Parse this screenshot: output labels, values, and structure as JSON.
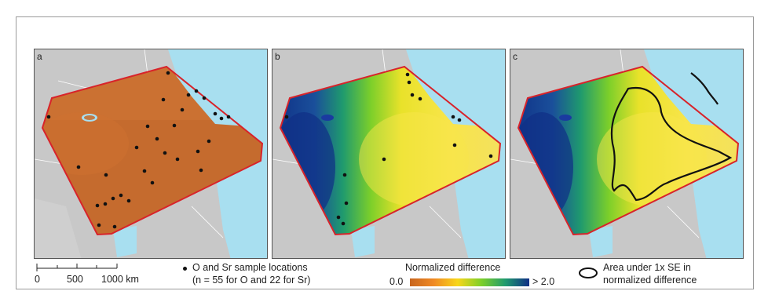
{
  "panels": [
    {
      "label": "a",
      "field": "uncertainty"
    },
    {
      "label": "b",
      "field": "normalized-difference"
    },
    {
      "label": "c",
      "field": "normalized-difference-with-se-contour"
    }
  ],
  "scalebar": {
    "ticks": [
      "0",
      "500",
      "1000 km"
    ]
  },
  "samples": {
    "line1": "O and Sr sample locations",
    "line2": "(n = 55 for O and 22 for Sr)"
  },
  "colorbar": {
    "title": "Normalized difference",
    "min_label": "0.0",
    "max_label": "> 2.0",
    "colors": [
      "#c8651e",
      "#f08a24",
      "#f8d61a",
      "#7ccf2a",
      "#1f9a6e",
      "#0f2f86"
    ]
  },
  "se_legend": {
    "line1": "Area under 1x SE in",
    "line2": "normalized difference"
  },
  "colors": {
    "land": "#c8c8c8",
    "water": "#a8dff0",
    "region_outline": "#d8232a",
    "terracotta": "#c86a36"
  }
}
